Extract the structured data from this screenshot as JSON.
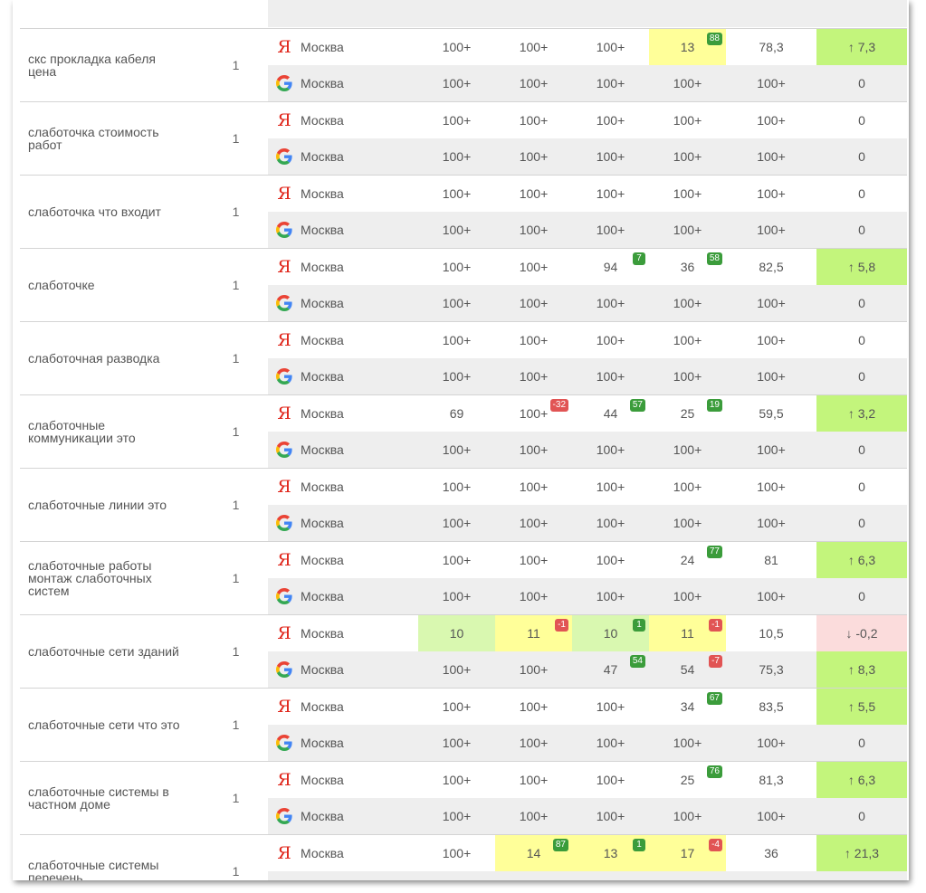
{
  "table": {
    "groups": [
      {
        "keyword": "",
        "frequency": "",
        "rows": [
          {
            "engine": "google",
            "region": "",
            "cells": [],
            "avg": "",
            "dynamic": {
              "text": "",
              "color": ""
            }
          }
        ]
      },
      {
        "keyword": "скс прокладка кабеля цена",
        "frequency": "1",
        "rows": [
          {
            "engine": "yandex",
            "region": "Москва",
            "cells": [
              {
                "value": "100+"
              },
              {
                "value": "100+"
              },
              {
                "value": "100+"
              },
              {
                "value": "13",
                "badge": "88",
                "badge_dir": "up",
                "color": "#ffff99"
              }
            ],
            "avg": "78,3",
            "dynamic": {
              "text": "↑ 7,3",
              "color": "#c3f57c"
            }
          },
          {
            "engine": "google",
            "region": "Москва",
            "cells": [
              {
                "value": "100+"
              },
              {
                "value": "100+"
              },
              {
                "value": "100+"
              },
              {
                "value": "100+"
              }
            ],
            "avg": "100+",
            "dynamic": {
              "text": "0",
              "color": ""
            }
          }
        ]
      },
      {
        "keyword": "слаботочка стоимость работ",
        "frequency": "1",
        "rows": [
          {
            "engine": "yandex",
            "region": "Москва",
            "cells": [
              {
                "value": "100+"
              },
              {
                "value": "100+"
              },
              {
                "value": "100+"
              },
              {
                "value": "100+"
              }
            ],
            "avg": "100+",
            "dynamic": {
              "text": "0",
              "color": ""
            }
          },
          {
            "engine": "google",
            "region": "Москва",
            "cells": [
              {
                "value": "100+"
              },
              {
                "value": "100+"
              },
              {
                "value": "100+"
              },
              {
                "value": "100+"
              }
            ],
            "avg": "100+",
            "dynamic": {
              "text": "0",
              "color": ""
            }
          }
        ]
      },
      {
        "keyword": "слаботочка что входит",
        "frequency": "1",
        "rows": [
          {
            "engine": "yandex",
            "region": "Москва",
            "cells": [
              {
                "value": "100+"
              },
              {
                "value": "100+"
              },
              {
                "value": "100+"
              },
              {
                "value": "100+"
              }
            ],
            "avg": "100+",
            "dynamic": {
              "text": "0",
              "color": ""
            }
          },
          {
            "engine": "google",
            "region": "Москва",
            "cells": [
              {
                "value": "100+"
              },
              {
                "value": "100+"
              },
              {
                "value": "100+"
              },
              {
                "value": "100+"
              }
            ],
            "avg": "100+",
            "dynamic": {
              "text": "0",
              "color": ""
            }
          }
        ]
      },
      {
        "keyword": "слаботочке",
        "frequency": "1",
        "rows": [
          {
            "engine": "yandex",
            "region": "Москва",
            "cells": [
              {
                "value": "100+"
              },
              {
                "value": "100+"
              },
              {
                "value": "94",
                "badge": "7",
                "badge_dir": "up"
              },
              {
                "value": "36",
                "badge": "58",
                "badge_dir": "up"
              }
            ],
            "avg": "82,5",
            "dynamic": {
              "text": "↑ 5,8",
              "color": "#c3f57c"
            }
          },
          {
            "engine": "google",
            "region": "Москва",
            "cells": [
              {
                "value": "100+"
              },
              {
                "value": "100+"
              },
              {
                "value": "100+"
              },
              {
                "value": "100+"
              }
            ],
            "avg": "100+",
            "dynamic": {
              "text": "0",
              "color": ""
            }
          }
        ]
      },
      {
        "keyword": "слаботочная разводка",
        "frequency": "1",
        "rows": [
          {
            "engine": "yandex",
            "region": "Москва",
            "cells": [
              {
                "value": "100+"
              },
              {
                "value": "100+"
              },
              {
                "value": "100+"
              },
              {
                "value": "100+"
              }
            ],
            "avg": "100+",
            "dynamic": {
              "text": "0",
              "color": ""
            }
          },
          {
            "engine": "google",
            "region": "Москва",
            "cells": [
              {
                "value": "100+"
              },
              {
                "value": "100+"
              },
              {
                "value": "100+"
              },
              {
                "value": "100+"
              }
            ],
            "avg": "100+",
            "dynamic": {
              "text": "0",
              "color": ""
            }
          }
        ]
      },
      {
        "keyword": "слаботочные коммуникации это",
        "frequency": "1",
        "rows": [
          {
            "engine": "yandex",
            "region": "Москва",
            "cells": [
              {
                "value": "69"
              },
              {
                "value": "100+",
                "badge": "-32",
                "badge_dir": "down"
              },
              {
                "value": "44",
                "badge": "57",
                "badge_dir": "up"
              },
              {
                "value": "25",
                "badge": "19",
                "badge_dir": "up"
              }
            ],
            "avg": "59,5",
            "dynamic": {
              "text": "↑ 3,2",
              "color": "#c3f57c"
            }
          },
          {
            "engine": "google",
            "region": "Москва",
            "cells": [
              {
                "value": "100+"
              },
              {
                "value": "100+"
              },
              {
                "value": "100+"
              },
              {
                "value": "100+"
              }
            ],
            "avg": "100+",
            "dynamic": {
              "text": "0",
              "color": ""
            }
          }
        ]
      },
      {
        "keyword": "слаботочные линии это",
        "frequency": "1",
        "rows": [
          {
            "engine": "yandex",
            "region": "Москва",
            "cells": [
              {
                "value": "100+"
              },
              {
                "value": "100+"
              },
              {
                "value": "100+"
              },
              {
                "value": "100+"
              }
            ],
            "avg": "100+",
            "dynamic": {
              "text": "0",
              "color": ""
            }
          },
          {
            "engine": "google",
            "region": "Москва",
            "cells": [
              {
                "value": "100+"
              },
              {
                "value": "100+"
              },
              {
                "value": "100+"
              },
              {
                "value": "100+"
              }
            ],
            "avg": "100+",
            "dynamic": {
              "text": "0",
              "color": ""
            }
          }
        ]
      },
      {
        "keyword": "слаботочные работы монтаж слаботочных систем",
        "frequency": "1",
        "rows": [
          {
            "engine": "yandex",
            "region": "Москва",
            "cells": [
              {
                "value": "100+"
              },
              {
                "value": "100+"
              },
              {
                "value": "100+"
              },
              {
                "value": "24",
                "badge": "77",
                "badge_dir": "up"
              }
            ],
            "avg": "81",
            "dynamic": {
              "text": "↑ 6,3",
              "color": "#c3f57c"
            }
          },
          {
            "engine": "google",
            "region": "Москва",
            "cells": [
              {
                "value": "100+"
              },
              {
                "value": "100+"
              },
              {
                "value": "100+"
              },
              {
                "value": "100+"
              }
            ],
            "avg": "100+",
            "dynamic": {
              "text": "0",
              "color": ""
            }
          }
        ]
      },
      {
        "keyword": "слаботочные сети зданий",
        "frequency": "1",
        "rows": [
          {
            "engine": "yandex",
            "region": "Москва",
            "cells": [
              {
                "value": "10",
                "color": "#d9f8b0"
              },
              {
                "value": "11",
                "badge": "-1",
                "badge_dir": "down",
                "color": "#ffff99"
              },
              {
                "value": "10",
                "badge": "1",
                "badge_dir": "up",
                "color": "#d9f8b0"
              },
              {
                "value": "11",
                "badge": "-1",
                "badge_dir": "down",
                "color": "#ffff99"
              }
            ],
            "avg": "10,5",
            "dynamic": {
              "text": "↓ -0,2",
              "color": "#fbdcdc"
            }
          },
          {
            "engine": "google",
            "region": "Москва",
            "cells": [
              {
                "value": "100+"
              },
              {
                "value": "100+"
              },
              {
                "value": "47",
                "badge": "54",
                "badge_dir": "up"
              },
              {
                "value": "54",
                "badge": "-7",
                "badge_dir": "down"
              }
            ],
            "avg": "75,3",
            "dynamic": {
              "text": "↑ 8,3",
              "color": "#c3f57c"
            }
          }
        ]
      },
      {
        "keyword": "слаботочные сети что это",
        "frequency": "1",
        "rows": [
          {
            "engine": "yandex",
            "region": "Москва",
            "cells": [
              {
                "value": "100+"
              },
              {
                "value": "100+"
              },
              {
                "value": "100+"
              },
              {
                "value": "34",
                "badge": "67",
                "badge_dir": "up"
              }
            ],
            "avg": "83,5",
            "dynamic": {
              "text": "↑ 5,5",
              "color": "#c3f57c"
            }
          },
          {
            "engine": "google",
            "region": "Москва",
            "cells": [
              {
                "value": "100+"
              },
              {
                "value": "100+"
              },
              {
                "value": "100+"
              },
              {
                "value": "100+"
              }
            ],
            "avg": "100+",
            "dynamic": {
              "text": "0",
              "color": ""
            }
          }
        ]
      },
      {
        "keyword": "слаботочные системы в частном доме",
        "frequency": "1",
        "rows": [
          {
            "engine": "yandex",
            "region": "Москва",
            "cells": [
              {
                "value": "100+"
              },
              {
                "value": "100+"
              },
              {
                "value": "100+"
              },
              {
                "value": "25",
                "badge": "76",
                "badge_dir": "up"
              }
            ],
            "avg": "81,3",
            "dynamic": {
              "text": "↑ 6,3",
              "color": "#c3f57c"
            }
          },
          {
            "engine": "google",
            "region": "Москва",
            "cells": [
              {
                "value": "100+"
              },
              {
                "value": "100+"
              },
              {
                "value": "100+"
              },
              {
                "value": "100+"
              }
            ],
            "avg": "100+",
            "dynamic": {
              "text": "0",
              "color": ""
            }
          }
        ]
      },
      {
        "keyword": "слаботочные системы перечень",
        "frequency": "1",
        "rows": [
          {
            "engine": "yandex",
            "region": "Москва",
            "cells": [
              {
                "value": "100+"
              },
              {
                "value": "14",
                "badge": "87",
                "badge_dir": "up",
                "color": "#ffff99"
              },
              {
                "value": "13",
                "badge": "1",
                "badge_dir": "up",
                "color": "#ffff99"
              },
              {
                "value": "17",
                "badge": "-4",
                "badge_dir": "down",
                "color": "#ffff99"
              }
            ],
            "avg": "36",
            "dynamic": {
              "text": "↑ 21,3",
              "color": "#c3f57c"
            }
          },
          {
            "engine": "google",
            "region": "",
            "cells": [],
            "avg": "",
            "dynamic": {
              "text": "",
              "color": ""
            }
          }
        ]
      }
    ]
  }
}
